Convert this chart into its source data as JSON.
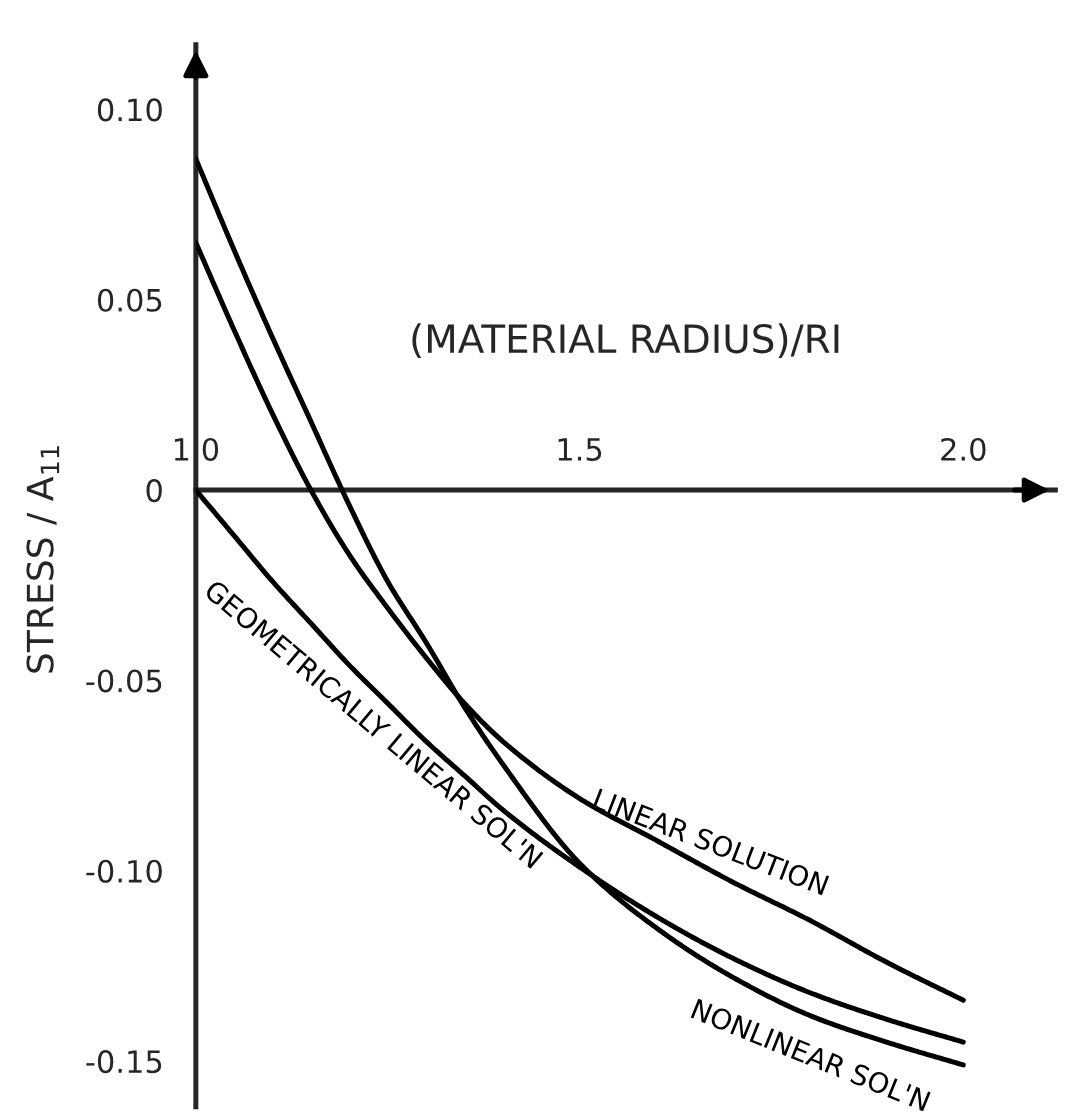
{
  "chart_data": {
    "type": "line",
    "xlabel": "(MATERIAL RADIUS)/RI",
    "ylabel": "STRESS / A$_{11}$",
    "x": [
      1.0,
      1.05,
      1.1,
      1.15,
      1.2,
      1.25,
      1.3,
      1.35,
      1.4,
      1.5,
      1.6,
      1.7,
      1.8,
      1.9,
      2.0
    ],
    "series": [
      {
        "name": "GEOMETRICALLY LINEAR SOL'N",
        "color": "#000000",
        "values": [
          0.0,
          -0.012,
          -0.024,
          -0.035,
          -0.046,
          -0.056,
          -0.066,
          -0.075,
          -0.084,
          -0.099,
          -0.112,
          -0.123,
          -0.132,
          -0.139,
          -0.145
        ]
      },
      {
        "name": "LINEAR SOLUTION",
        "color": "#000000",
        "values": [
          0.065,
          0.042,
          0.02,
          0.0,
          -0.017,
          -0.031,
          -0.044,
          -0.056,
          -0.066,
          -0.081,
          -0.092,
          -0.103,
          -0.113,
          -0.124,
          -0.134
        ]
      },
      {
        "name": "NONLINEAR SOL'N",
        "color": "#000000",
        "values": [
          0.087,
          0.063,
          0.04,
          0.018,
          -0.004,
          -0.024,
          -0.04,
          -0.057,
          -0.072,
          -0.098,
          -0.115,
          -0.128,
          -0.138,
          -0.145,
          -0.151
        ]
      }
    ],
    "xlim": [
      1.0,
      2.12
    ],
    "ylim": [
      -0.162,
      0.117
    ],
    "xticks": [
      {
        "value": 1.0,
        "label": "1.0"
      },
      {
        "value": 1.5,
        "label": "1.5"
      },
      {
        "value": 2.0,
        "label": "2.0"
      }
    ],
    "yticks": [
      {
        "value": 0.1,
        "label": "0.10"
      },
      {
        "value": 0.05,
        "label": "0.05"
      },
      {
        "value": 0,
        "label": "0"
      },
      {
        "value": -0.05,
        "label": "-0.05"
      },
      {
        "value": -0.1,
        "label": "-0.10"
      },
      {
        "value": -0.15,
        "label": "-0.15"
      }
    ],
    "grid": false,
    "legend": false,
    "marker": "none",
    "line_style": "solid"
  }
}
